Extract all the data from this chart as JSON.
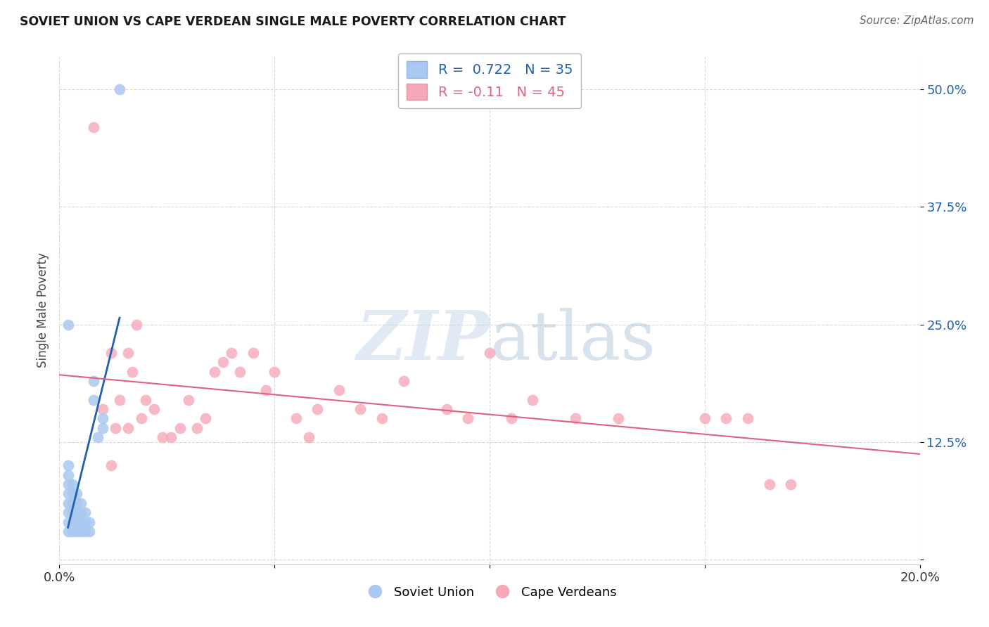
{
  "title": "SOVIET UNION VS CAPE VERDEAN SINGLE MALE POVERTY CORRELATION CHART",
  "source": "Source: ZipAtlas.com",
  "ylabel": "Single Male Poverty",
  "xlim": [
    0.0,
    0.2
  ],
  "ylim": [
    -0.005,
    0.535
  ],
  "yticks": [
    0.0,
    0.125,
    0.25,
    0.375,
    0.5
  ],
  "ytick_labels": [
    "",
    "12.5%",
    "25.0%",
    "37.5%",
    "50.0%"
  ],
  "xticks": [
    0.0,
    0.05,
    0.1,
    0.15,
    0.2
  ],
  "xtick_labels": [
    "0.0%",
    "",
    "",
    "",
    "20.0%"
  ],
  "soviet_R": 0.722,
  "soviet_N": 35,
  "cape_R": -0.11,
  "cape_N": 45,
  "soviet_color": "#aac8f0",
  "soviet_line_color": "#2060b0",
  "cape_color": "#f5a8b8",
  "cape_line_color": "#e06080",
  "soviet_x": [
    0.002,
    0.002,
    0.002,
    0.002,
    0.002,
    0.002,
    0.002,
    0.002,
    0.003,
    0.003,
    0.003,
    0.003,
    0.003,
    0.003,
    0.004,
    0.004,
    0.004,
    0.004,
    0.004,
    0.005,
    0.005,
    0.005,
    0.005,
    0.006,
    0.006,
    0.006,
    0.007,
    0.007,
    0.008,
    0.008,
    0.009,
    0.01,
    0.01,
    0.002,
    0.014
  ],
  "soviet_y": [
    0.03,
    0.04,
    0.05,
    0.06,
    0.07,
    0.08,
    0.09,
    0.1,
    0.03,
    0.04,
    0.05,
    0.06,
    0.07,
    0.08,
    0.03,
    0.04,
    0.05,
    0.06,
    0.07,
    0.03,
    0.04,
    0.05,
    0.06,
    0.03,
    0.04,
    0.05,
    0.03,
    0.04,
    0.17,
    0.19,
    0.13,
    0.14,
    0.15,
    0.25,
    0.5
  ],
  "cape_x": [
    0.008,
    0.01,
    0.012,
    0.013,
    0.014,
    0.016,
    0.016,
    0.017,
    0.018,
    0.019,
    0.02,
    0.022,
    0.024,
    0.026,
    0.028,
    0.03,
    0.032,
    0.034,
    0.036,
    0.038,
    0.04,
    0.042,
    0.045,
    0.048,
    0.05,
    0.055,
    0.058,
    0.06,
    0.065,
    0.07,
    0.075,
    0.08,
    0.09,
    0.095,
    0.1,
    0.105,
    0.11,
    0.12,
    0.13,
    0.15,
    0.155,
    0.16,
    0.165,
    0.17,
    0.012
  ],
  "cape_y": [
    0.46,
    0.16,
    0.22,
    0.14,
    0.17,
    0.22,
    0.14,
    0.2,
    0.25,
    0.15,
    0.17,
    0.16,
    0.13,
    0.13,
    0.14,
    0.17,
    0.14,
    0.15,
    0.2,
    0.21,
    0.22,
    0.2,
    0.22,
    0.18,
    0.2,
    0.15,
    0.13,
    0.16,
    0.18,
    0.16,
    0.15,
    0.19,
    0.16,
    0.15,
    0.22,
    0.15,
    0.17,
    0.15,
    0.15,
    0.15,
    0.15,
    0.15,
    0.08,
    0.08,
    0.1
  ],
  "watermark_zip": "ZIP",
  "watermark_atlas": "atlas",
  "background_color": "#ffffff",
  "grid_color": "#d8d8d8"
}
